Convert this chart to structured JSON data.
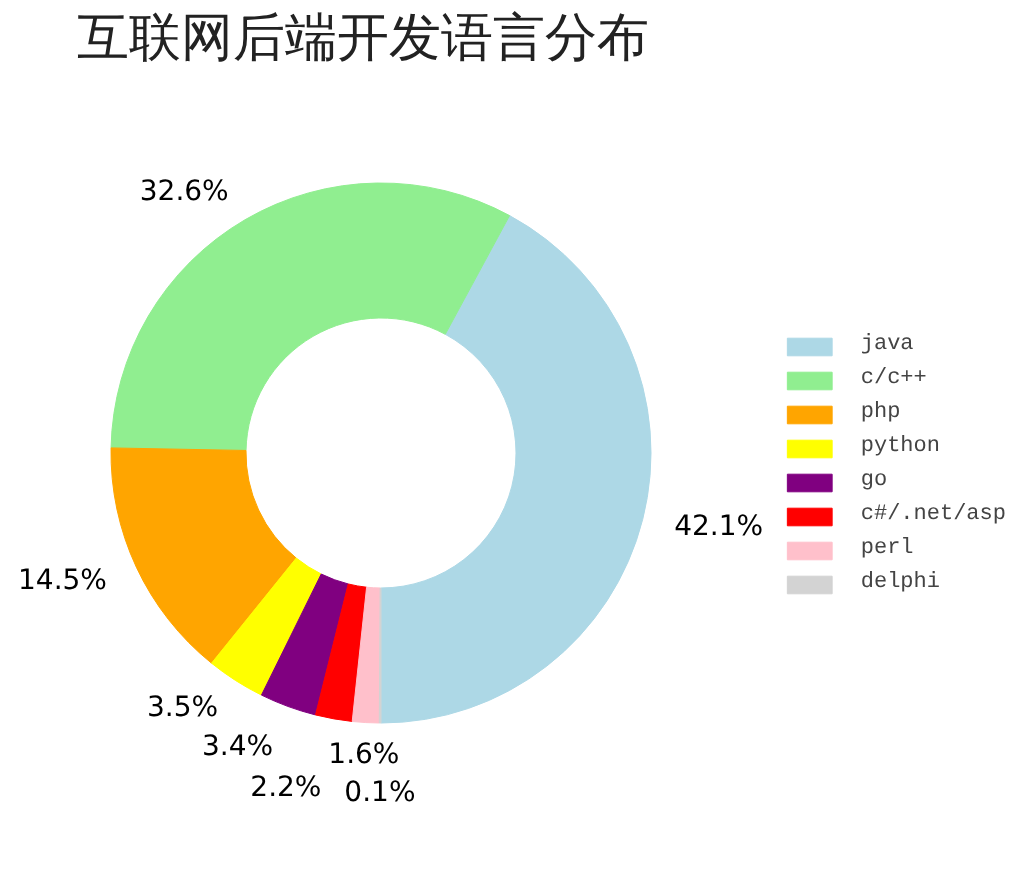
{
  "chart_data": {
    "type": "donut",
    "title": "互联网后端开发语言分布",
    "categories": [
      "java",
      "c/c++",
      "php",
      "python",
      "go",
      "c#/.net/asp",
      "perl",
      "delphi"
    ],
    "values": [
      42.1,
      32.6,
      14.5,
      3.5,
      3.4,
      2.2,
      1.6,
      0.1
    ],
    "value_labels": [
      "42.1%",
      "32.6%",
      "14.5%",
      "3.5%",
      "3.4%",
      "2.2%",
      "1.6%",
      "0.1%"
    ],
    "colors": [
      "#add8e6",
      "#90ee90",
      "#ffa500",
      "#ffff00",
      "#800080",
      "#ff0000",
      "#ffc0cb",
      "#d3d3d3"
    ],
    "legend": "right"
  }
}
